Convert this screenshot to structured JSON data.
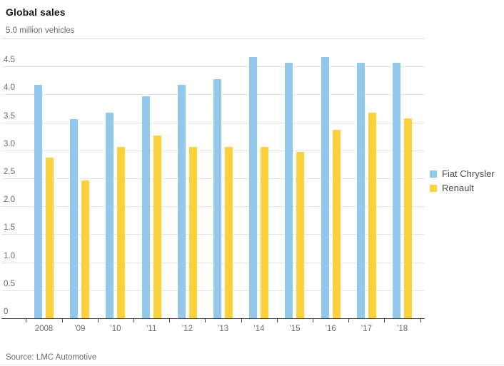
{
  "title": "Global sales",
  "unit_label": "5.0 million vehicles",
  "source": "Source: LMC Automotive",
  "colors": {
    "fiat_chrysler": "#94c8ea",
    "renault": "#fcd13c",
    "grid": "#e4e4e4",
    "axis": "#4a4a4a",
    "text_gray": "#6b6b6b",
    "title_text": "#1a1a1a"
  },
  "legend": {
    "items": [
      {
        "label": "Fiat Chrysler",
        "color": "#94c8ea"
      },
      {
        "label": "Renault",
        "color": "#fcd13c"
      }
    ]
  },
  "chart_data": {
    "type": "bar",
    "title": "Global sales",
    "ylabel": "million vehicles",
    "xlabel": "",
    "categories": [
      "2008",
      "’09",
      "’10",
      "’11",
      "’12",
      "’13",
      "’14",
      "’15",
      "’16",
      "’17",
      "’18"
    ],
    "series": [
      {
        "name": "Fiat Chrysler",
        "color": "#94c8ea",
        "values": [
          4.17,
          3.56,
          3.67,
          3.97,
          4.17,
          4.27,
          4.67,
          4.57,
          4.67,
          4.57,
          4.57
        ]
      },
      {
        "name": "Renault",
        "color": "#fcd13c",
        "values": [
          2.87,
          2.46,
          3.06,
          3.26,
          3.06,
          3.06,
          3.06,
          2.97,
          3.37,
          3.67,
          3.57
        ]
      }
    ],
    "ylim": [
      0,
      5.0
    ],
    "ytick_step": 0.5,
    "ytick_labels": [
      "0",
      "0.5",
      "1.0",
      "1.5",
      "2.0",
      "2.5",
      "3.0",
      "3.5",
      "4.0",
      "4.5",
      "5.0 million vehicles"
    ],
    "grid": true,
    "legend_position": "right"
  }
}
